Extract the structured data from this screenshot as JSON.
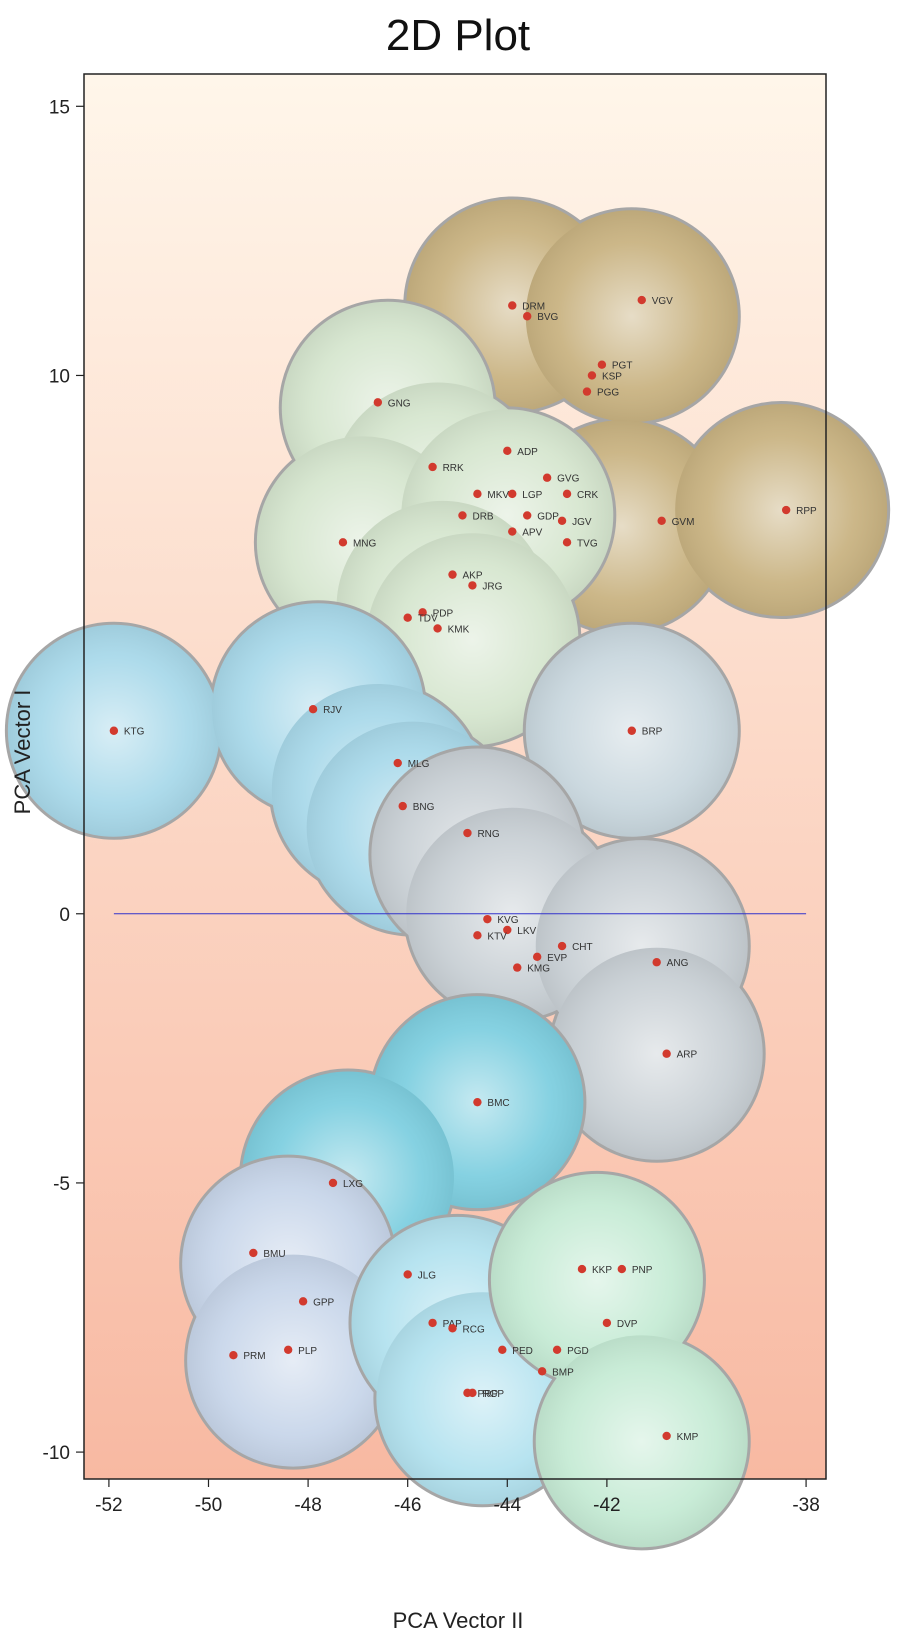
{
  "chart_data": {
    "type": "scatter",
    "title": "2D Plot",
    "xlabel": "PCA Vector II",
    "ylabel": "PCA Vector I",
    "xlim": [
      -52.5,
      -37.6
    ],
    "ylim": [
      -10.5,
      15.6
    ],
    "xticks": [
      -52,
      -50,
      -48,
      -46,
      -44,
      -42,
      -38
    ],
    "yticks": [
      15,
      10,
      0,
      -5,
      -10
    ],
    "grid": false,
    "zero_line": true,
    "colors": {
      "point": "#d23a2e",
      "zero_line": "#3333cc",
      "background_top": "#fff6ea",
      "background_bottom": "#f8b9a2",
      "axes": "#222222"
    },
    "clusters": [
      {
        "color": "#c9b382",
        "circles": [
          [
            -43.9,
            11.3
          ],
          [
            -41.5,
            11.1
          ],
          [
            -41.7,
            7.2
          ],
          [
            -38.5,
            7.5
          ]
        ]
      },
      {
        "color": "#d6e6cf",
        "circles": [
          [
            -46.4,
            9.4
          ],
          [
            -45.4,
            7.9
          ],
          [
            -46.9,
            6.9
          ],
          [
            -44.0,
            7.4
          ],
          [
            -45.3,
            5.7
          ],
          [
            -44.7,
            5.1
          ]
        ]
      },
      {
        "color": "#a9d9ea",
        "circles": [
          [
            -51.9,
            3.4
          ],
          [
            -47.8,
            3.8
          ],
          [
            -46.6,
            2.3
          ],
          [
            -45.9,
            1.6
          ]
        ]
      },
      {
        "color": "#c9d7de",
        "circles": [
          [
            -41.5,
            3.4
          ]
        ]
      },
      {
        "color": "#c9d0d5",
        "circles": [
          [
            -44.6,
            1.1
          ],
          [
            -43.9,
            0.0
          ],
          [
            -41.3,
            -0.6
          ],
          [
            -41.0,
            -2.6
          ]
        ]
      },
      {
        "color": "#7fcfe0",
        "circles": [
          [
            -44.6,
            -3.5
          ],
          [
            -47.2,
            -4.9
          ]
        ]
      },
      {
        "color": "#c8d6ea",
        "circles": [
          [
            -48.4,
            -6.5
          ],
          [
            -48.3,
            -8.3
          ]
        ]
      },
      {
        "color": "#b3e2ef",
        "circles": [
          [
            -45.0,
            -7.6
          ],
          [
            -44.5,
            -9.0
          ]
        ]
      },
      {
        "color": "#c6ebd5",
        "circles": [
          [
            -42.2,
            -6.8
          ],
          [
            -41.3,
            -9.8
          ]
        ]
      }
    ],
    "points": [
      {
        "label": "DRM",
        "x": -43.9,
        "y": 11.3
      },
      {
        "label": "BVG",
        "x": -43.6,
        "y": 11.1
      },
      {
        "label": "VGV",
        "x": -41.3,
        "y": 11.4
      },
      {
        "label": "PGT",
        "x": -42.1,
        "y": 10.2
      },
      {
        "label": "KSP",
        "x": -42.3,
        "y": 10.0
      },
      {
        "label": "PGG",
        "x": -42.4,
        "y": 9.7
      },
      {
        "label": "GNG",
        "x": -46.6,
        "y": 9.5
      },
      {
        "label": "ADP",
        "x": -44.0,
        "y": 8.6
      },
      {
        "label": "RRK",
        "x": -45.5,
        "y": 8.3
      },
      {
        "label": "GVG",
        "x": -43.2,
        "y": 8.1
      },
      {
        "label": "MKV",
        "x": -44.6,
        "y": 7.8
      },
      {
        "label": "LGP",
        "x": -43.9,
        "y": 7.8
      },
      {
        "label": "CRK",
        "x": -42.8,
        "y": 7.8
      },
      {
        "label": "DRB",
        "x": -44.9,
        "y": 7.4
      },
      {
        "label": "GDP",
        "x": -43.6,
        "y": 7.4
      },
      {
        "label": "JGV",
        "x": -42.9,
        "y": 7.3
      },
      {
        "label": "APV",
        "x": -43.9,
        "y": 7.1
      },
      {
        "label": "TVG",
        "x": -42.8,
        "y": 6.9
      },
      {
        "label": "GVM",
        "x": -40.9,
        "y": 7.3
      },
      {
        "label": "RPP",
        "x": -38.4,
        "y": 7.5
      },
      {
        "label": "MNG",
        "x": -47.3,
        "y": 6.9
      },
      {
        "label": "AKP",
        "x": -45.1,
        "y": 6.3
      },
      {
        "label": "JRG",
        "x": -44.7,
        "y": 6.1
      },
      {
        "label": "PDP",
        "x": -45.7,
        "y": 5.6
      },
      {
        "label": "TDV",
        "x": -46.0,
        "y": 5.5
      },
      {
        "label": "KMK",
        "x": -45.4,
        "y": 5.3
      },
      {
        "label": "KTG",
        "x": -51.9,
        "y": 3.4
      },
      {
        "label": "RJV",
        "x": -47.9,
        "y": 3.8
      },
      {
        "label": "BRP",
        "x": -41.5,
        "y": 3.4
      },
      {
        "label": "MLG",
        "x": -46.2,
        "y": 2.8
      },
      {
        "label": "BNG",
        "x": -46.1,
        "y": 2.0
      },
      {
        "label": "RNG",
        "x": -44.8,
        "y": 1.5
      },
      {
        "label": "KVG",
        "x": -44.4,
        "y": -0.1
      },
      {
        "label": "LKV",
        "x": -44.0,
        "y": -0.3
      },
      {
        "label": "KTV",
        "x": -44.6,
        "y": -0.4
      },
      {
        "label": "CHT",
        "x": -42.9,
        "y": -0.6
      },
      {
        "label": "EVP",
        "x": -43.4,
        "y": -0.8
      },
      {
        "label": "ANG",
        "x": -41.0,
        "y": -0.9
      },
      {
        "label": "KMG",
        "x": -43.8,
        "y": -1.0
      },
      {
        "label": "ARP",
        "x": -40.8,
        "y": -2.6
      },
      {
        "label": "BMC",
        "x": -44.6,
        "y": -3.5
      },
      {
        "label": "LXG",
        "x": -47.5,
        "y": -5.0
      },
      {
        "label": "BMU",
        "x": -49.1,
        "y": -6.3
      },
      {
        "label": "JLG",
        "x": -46.0,
        "y": -6.7
      },
      {
        "label": "KKP",
        "x": -42.5,
        "y": -6.6
      },
      {
        "label": "PNP",
        "x": -41.7,
        "y": -6.6
      },
      {
        "label": "GPP",
        "x": -48.1,
        "y": -7.2
      },
      {
        "label": "DVP",
        "x": -42.0,
        "y": -7.6
      },
      {
        "label": "PAP",
        "x": -45.5,
        "y": -7.6
      },
      {
        "label": "RCG",
        "x": -45.1,
        "y": -7.7
      },
      {
        "label": "PLP",
        "x": -48.4,
        "y": -8.1
      },
      {
        "label": "PED",
        "x": -44.1,
        "y": -8.1
      },
      {
        "label": "PGD",
        "x": -43.0,
        "y": -8.1
      },
      {
        "label": "PRM",
        "x": -49.5,
        "y": -8.2
      },
      {
        "label": "BMP",
        "x": -43.3,
        "y": -8.5
      },
      {
        "label": "PRP",
        "x": -44.8,
        "y": -8.9
      },
      {
        "label": "RGP",
        "x": -44.7,
        "y": -8.9
      },
      {
        "label": "KMP",
        "x": -40.8,
        "y": -9.7
      }
    ]
  }
}
